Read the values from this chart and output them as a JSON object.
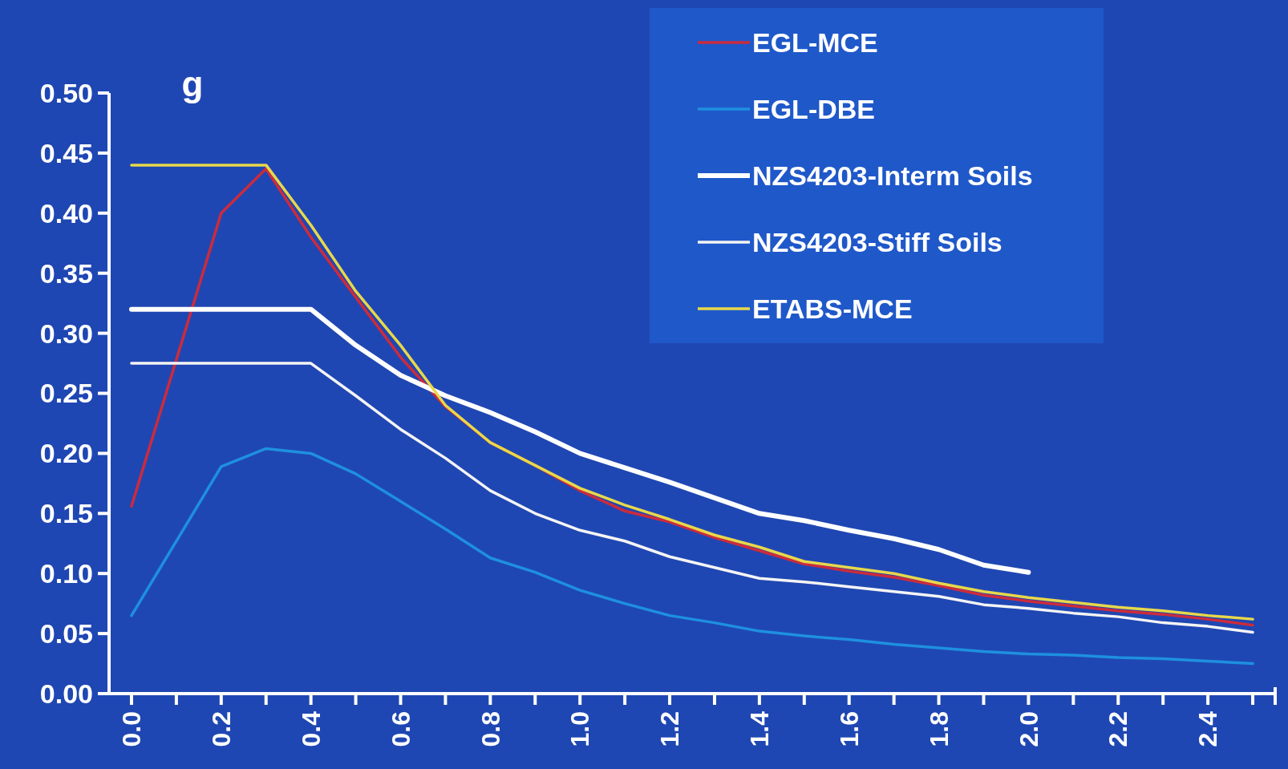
{
  "chart_data": {
    "type": "line",
    "ylabel": "g",
    "xlim": [
      -0.05,
      2.55
    ],
    "ylim": [
      0,
      0.5
    ],
    "xticks": [
      {
        "value": 0,
        "label": "0.0"
      },
      {
        "value": 0.1,
        "label": null
      },
      {
        "value": 0.2,
        "label": "0.2"
      },
      {
        "value": 0.3,
        "label": null
      },
      {
        "value": 0.4,
        "label": "0.4"
      },
      {
        "value": 0.5,
        "label": null
      },
      {
        "value": 0.6,
        "label": "0.6"
      },
      {
        "value": 0.7,
        "label": null
      },
      {
        "value": 0.8,
        "label": "0.8"
      },
      {
        "value": 0.9,
        "label": null
      },
      {
        "value": 1.0,
        "label": "1.0"
      },
      {
        "value": 1.1,
        "label": null
      },
      {
        "value": 1.2,
        "label": "1.2"
      },
      {
        "value": 1.3,
        "label": null
      },
      {
        "value": 1.4,
        "label": "1.4"
      },
      {
        "value": 1.5,
        "label": null
      },
      {
        "value": 1.6,
        "label": "1.6"
      },
      {
        "value": 1.7,
        "label": null
      },
      {
        "value": 1.8,
        "label": "1.8"
      },
      {
        "value": 1.9,
        "label": null
      },
      {
        "value": 2.0,
        "label": "2.0"
      },
      {
        "value": 2.1,
        "label": null
      },
      {
        "value": 2.2,
        "label": "2.2"
      },
      {
        "value": 2.3,
        "label": null
      },
      {
        "value": 2.4,
        "label": "2.4"
      },
      {
        "value": 2.5,
        "label": null
      }
    ],
    "yticks": [
      {
        "value": 0,
        "label": "0.00"
      },
      {
        "value": 0.05,
        "label": "0.05"
      },
      {
        "value": 0.1,
        "label": "0.10"
      },
      {
        "value": 0.15,
        "label": "0.15"
      },
      {
        "value": 0.2,
        "label": "0.20"
      },
      {
        "value": 0.25,
        "label": "0.25"
      },
      {
        "value": 0.3,
        "label": "0.30"
      },
      {
        "value": 0.35,
        "label": "0.35"
      },
      {
        "value": 0.4,
        "label": "0.40"
      },
      {
        "value": 0.45,
        "label": "0.45"
      },
      {
        "value": 0.5,
        "label": "0.50"
      }
    ],
    "legend": "top right",
    "marker": "none",
    "series": [
      {
        "name": "EGL-MCE",
        "color": "#cc2b3c",
        "x": [
          0,
          0.2,
          0.3,
          0.4,
          0.5,
          0.6,
          0.7,
          0.8,
          0.9,
          1.0,
          1.1,
          1.2,
          1.3,
          1.4,
          1.5,
          1.6,
          1.7,
          1.8,
          1.9,
          2.0,
          2.1,
          2.2,
          2.3,
          2.4,
          2.5
        ],
        "values": [
          0.156,
          0.4,
          0.437,
          0.38,
          0.33,
          0.28,
          0.239,
          0.209,
          0.19,
          0.169,
          0.152,
          0.143,
          0.13,
          0.119,
          0.108,
          0.102,
          0.097,
          0.09,
          0.082,
          0.077,
          0.073,
          0.069,
          0.066,
          0.062,
          0.057
        ]
      },
      {
        "name": "EGL-DBE",
        "color": "#1e90e0",
        "x": [
          0,
          0.2,
          0.3,
          0.4,
          0.5,
          0.6,
          0.7,
          0.8,
          0.9,
          1.0,
          1.1,
          1.2,
          1.3,
          1.4,
          1.5,
          1.6,
          1.7,
          1.8,
          1.9,
          2.0,
          2.1,
          2.2,
          2.3,
          2.4,
          2.5
        ],
        "values": [
          0.065,
          0.189,
          0.204,
          0.2,
          0.183,
          0.16,
          0.137,
          0.113,
          0.101,
          0.086,
          0.075,
          0.065,
          0.059,
          0.052,
          0.048,
          0.045,
          0.041,
          0.038,
          0.035,
          0.033,
          0.032,
          0.03,
          0.029,
          0.027,
          0.025
        ]
      },
      {
        "name": "NZS4203-Interm Soils",
        "color": "#ffffff",
        "x": [
          0,
          0.4,
          0.5,
          0.6,
          0.7,
          0.8,
          0.9,
          1.0,
          1.1,
          1.2,
          1.3,
          1.4,
          1.5,
          1.6,
          1.7,
          1.8,
          1.9,
          2.0
        ],
        "values": [
          0.32,
          0.32,
          0.29,
          0.265,
          0.248,
          0.234,
          0.218,
          0.2,
          0.188,
          0.176,
          0.163,
          0.15,
          0.144,
          0.136,
          0.129,
          0.12,
          0.107,
          0.101
        ]
      },
      {
        "name": "NZS4203-Stiff Soils",
        "color": "#f4f4f4",
        "x": [
          0,
          0.4,
          0.5,
          0.6,
          0.7,
          0.8,
          0.9,
          1.0,
          1.1,
          1.2,
          1.3,
          1.4,
          1.5,
          1.6,
          1.7,
          1.8,
          1.9,
          2.0,
          2.1,
          2.2,
          2.3,
          2.4,
          2.5
        ],
        "values": [
          0.275,
          0.275,
          0.248,
          0.22,
          0.196,
          0.169,
          0.15,
          0.136,
          0.127,
          0.114,
          0.105,
          0.096,
          0.093,
          0.089,
          0.085,
          0.081,
          0.074,
          0.071,
          0.067,
          0.064,
          0.059,
          0.056,
          0.051
        ]
      },
      {
        "name": "ETABS-MCE",
        "color": "#e8d84a",
        "x": [
          0,
          0.3,
          0.4,
          0.5,
          0.6,
          0.7,
          0.8,
          0.9,
          1.0,
          1.1,
          1.2,
          1.3,
          1.4,
          1.5,
          1.6,
          1.7,
          1.8,
          1.9,
          2.0,
          2.1,
          2.2,
          2.3,
          2.4,
          2.5
        ],
        "values": [
          0.44,
          0.44,
          0.39,
          0.335,
          0.29,
          0.24,
          0.209,
          0.19,
          0.171,
          0.157,
          0.145,
          0.132,
          0.122,
          0.11,
          0.105,
          0.1,
          0.092,
          0.085,
          0.08,
          0.076,
          0.072,
          0.069,
          0.065,
          0.062
        ]
      }
    ]
  }
}
